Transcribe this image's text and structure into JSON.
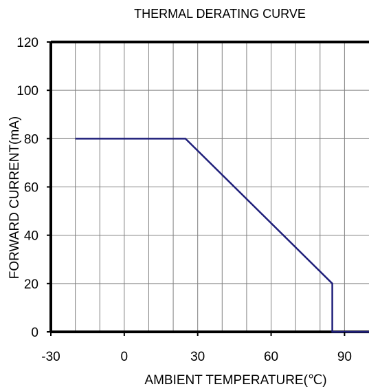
{
  "chart_data": {
    "type": "line",
    "title": "THERMAL DERATING CURVE",
    "xlabel": "AMBIENT TEMPERATURE(℃)",
    "ylabel": "FORWARD CURRENT(mA)",
    "xlim": [
      -30,
      100
    ],
    "ylim": [
      0,
      120
    ],
    "x_ticks": [
      -30,
      0,
      30,
      60,
      90
    ],
    "y_ticks": [
      0,
      20,
      40,
      60,
      80,
      100,
      120
    ],
    "x_gridlines": [
      -20,
      -10,
      0,
      10,
      20,
      30,
      40,
      50,
      60,
      70,
      80,
      90
    ],
    "y_gridlines": [
      20,
      40,
      60,
      80,
      100
    ],
    "grid": true,
    "series": [
      {
        "x": [
          -20,
          25,
          85,
          85,
          100
        ],
        "y": [
          80,
          80,
          20,
          0,
          0
        ]
      }
    ]
  },
  "colors": {
    "line": "#1f1f7a",
    "axis": "#000000",
    "grid": "#808080"
  }
}
